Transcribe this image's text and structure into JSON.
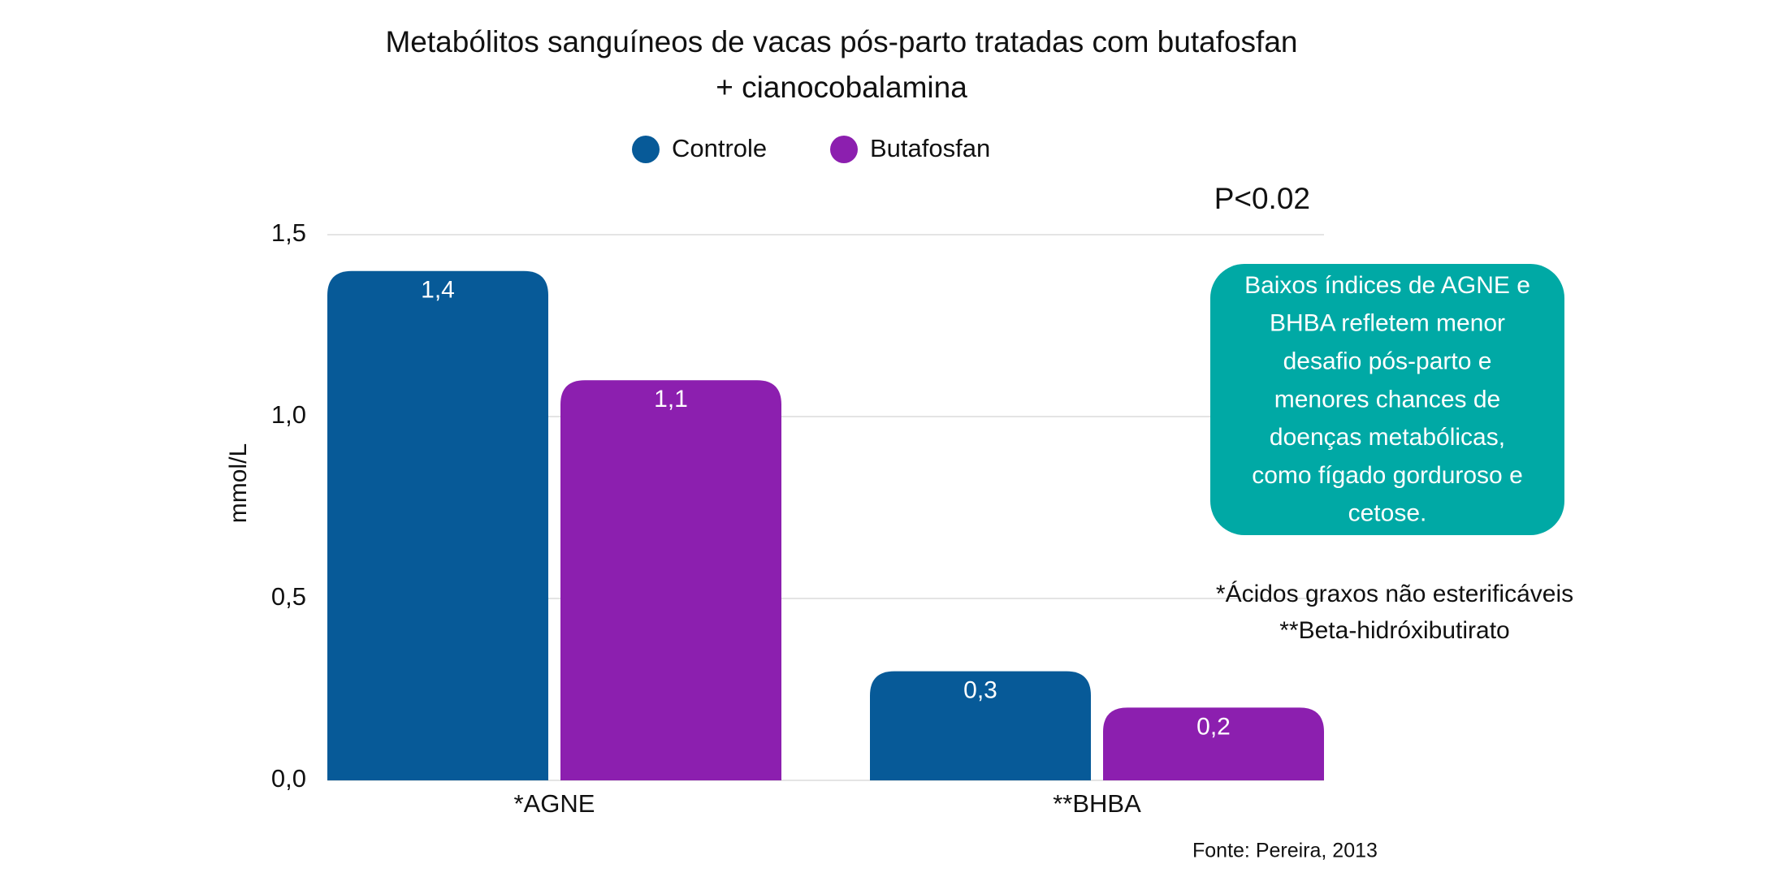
{
  "chart_data": {
    "type": "bar",
    "title": [
      "Metabólitos sanguíneos de vacas pós-parto tratadas com butafosfan",
      "+ cianocobalamina"
    ],
    "y_label": "mmol/L",
    "categories": [
      "*AGNE",
      "**BHBA"
    ],
    "series": [
      {
        "name": "Controle",
        "color": "#075a98",
        "values": [
          1.4,
          0.3
        ],
        "value_labels": [
          "1,4",
          "0,3"
        ]
      },
      {
        "name": "Butafosfan",
        "color": "#8c1faf",
        "values": [
          1.1,
          0.2
        ],
        "value_labels": [
          "1,1",
          "0,2"
        ]
      }
    ],
    "ylim": [
      0,
      1.5
    ],
    "yticks": [
      {
        "value": 0,
        "label": "0,0"
      },
      {
        "value": 0.5,
        "label": "0,5"
      },
      {
        "value": 1.0,
        "label": "1,0"
      },
      {
        "value": 1.5,
        "label": "1,5"
      }
    ],
    "grid": true,
    "annotation": "P<0.02",
    "callout": [
      "Baixos índices de AGNE e",
      "BHBA refletem menor",
      "desafio pós-parto e",
      "menores chances de",
      "doenças metabólicas,",
      "como fígado gorduroso e",
      "cetose."
    ],
    "callout_color": "#00a9a5",
    "footnotes": [
      "*Ácidos graxos não esterificáveis",
      "**Beta-hidróxibutirato"
    ],
    "source": "Fonte: Pereira, 2013"
  }
}
